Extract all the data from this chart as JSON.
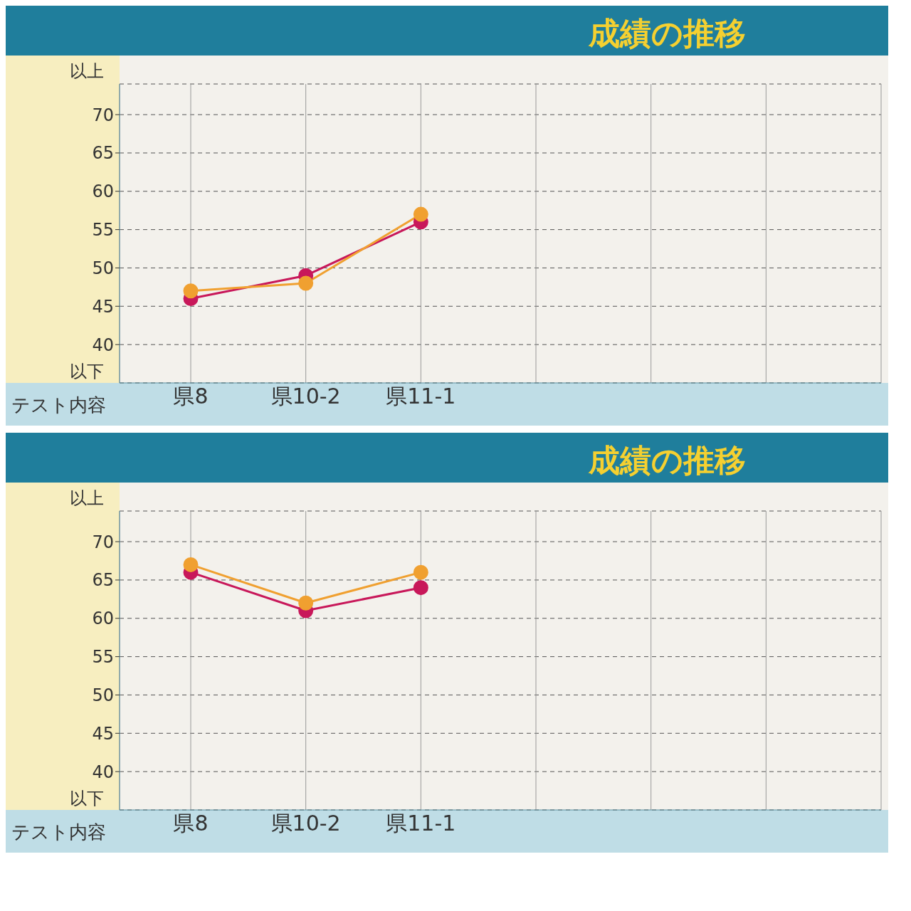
{
  "chart_data": [
    {
      "type": "line",
      "title": "成績の推移",
      "xlabel": "テスト内容",
      "annotations": [
        "以上",
        "以下"
      ],
      "categories": [
        "県8",
        "県10-2",
        "県11-1",
        null,
        null,
        null,
        null
      ],
      "series": [
        {
          "color": "#c8185a",
          "values": [
            46,
            49,
            56,
            null,
            null,
            null,
            null
          ]
        },
        {
          "color": "#f0a030",
          "values": [
            47,
            48,
            57,
            null,
            null,
            null,
            null
          ]
        }
      ],
      "ylim": [
        35,
        74
      ],
      "yticks": [
        40,
        45,
        50,
        55,
        60,
        65,
        70
      ],
      "grid": true,
      "legend": false,
      "marker": "circle",
      "line_style": "solid"
    },
    {
      "type": "line",
      "title": "成績の推移",
      "xlabel": "テスト内容",
      "annotations": [
        "以上",
        "以下"
      ],
      "categories": [
        "県8",
        "県10-2",
        "県11-1",
        null,
        null,
        null,
        null
      ],
      "series": [
        {
          "color": "#c8185a",
          "values": [
            66,
            61,
            64,
            null,
            null,
            null,
            null
          ]
        },
        {
          "color": "#f0a030",
          "values": [
            67,
            62,
            66,
            null,
            null,
            null,
            null
          ]
        }
      ],
      "ylim": [
        35,
        74
      ],
      "yticks": [
        40,
        45,
        50,
        55,
        60,
        65,
        70
      ],
      "grid": true,
      "legend": false,
      "marker": "circle",
      "line_style": "solid"
    }
  ]
}
